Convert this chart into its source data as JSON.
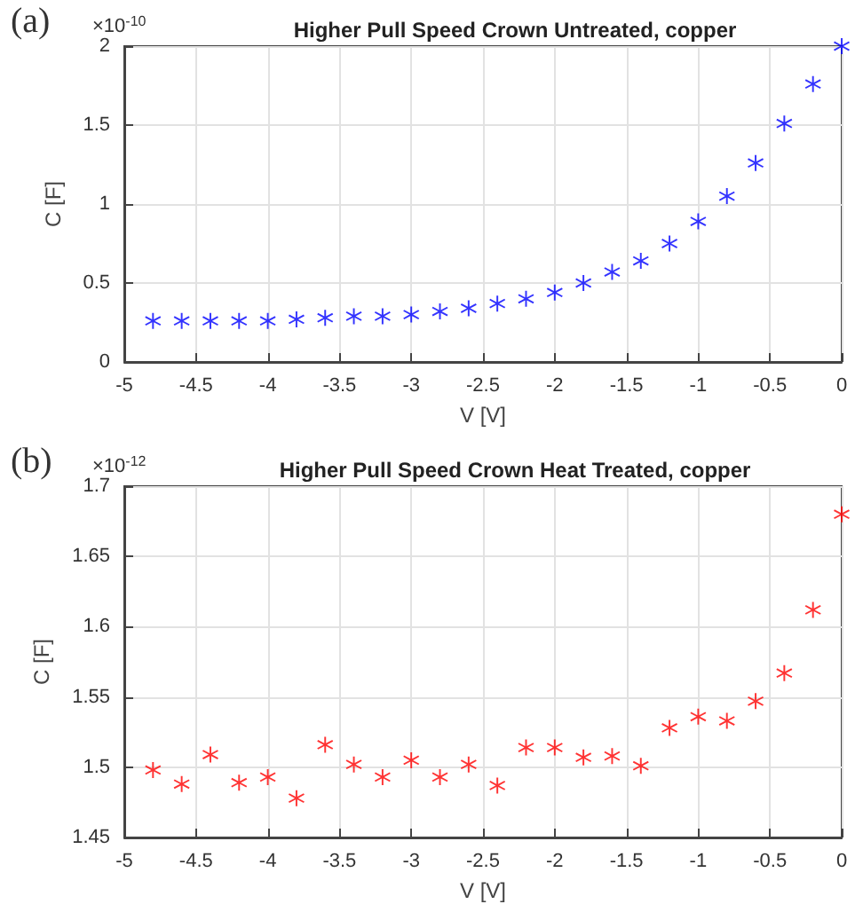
{
  "chart_data": [
    {
      "type": "scatter",
      "title": "Higher Pull Speed Crown Untreated, copper",
      "xlabel": "V [V]",
      "ylabel": "C [F]",
      "annotations": [
        "(a)",
        "×10$^{-10}$"
      ],
      "x": [
        -4.8,
        -4.6,
        -4.4,
        -4.2,
        -4.0,
        -3.8,
        -3.6,
        -3.4,
        -3.2,
        -3.0,
        -2.8,
        -2.6,
        -2.4,
        -2.2,
        -2.0,
        -1.8,
        -1.6,
        -1.4,
        -1.2,
        -1.0,
        -0.8,
        -0.6,
        -0.4,
        -0.2,
        0
      ],
      "series": [
        {
          "color": "#0000ff",
          "values": [
            0.26,
            0.26,
            0.26,
            0.26,
            0.26,
            0.27,
            0.28,
            0.29,
            0.29,
            0.3,
            0.32,
            0.34,
            0.37,
            0.4,
            0.44,
            0.5,
            0.57,
            0.64,
            0.75,
            0.89,
            1.05,
            1.26,
            1.51,
            1.76,
            2.0
          ]
        }
      ],
      "xlim": [
        -5,
        0
      ],
      "xticks": [
        -5,
        -4.5,
        -4,
        -3.5,
        -3,
        -2.5,
        -2,
        -1.5,
        -1,
        -0.5,
        0
      ],
      "ylim": [
        0,
        2
      ],
      "yticks": [
        0,
        0.5,
        1,
        1.5,
        2
      ],
      "grid": true,
      "marker": "star"
    },
    {
      "type": "scatter",
      "title": "Higher Pull Speed Crown Heat Treated, copper",
      "xlabel": "V [V]",
      "ylabel": "C [F]",
      "annotations": [
        "(b)",
        "×10$^{-12}$"
      ],
      "x": [
        -4.8,
        -4.6,
        -4.4,
        -4.2,
        -4.0,
        -3.8,
        -3.6,
        -3.4,
        -3.2,
        -3.0,
        -2.8,
        -2.6,
        -2.4,
        -2.2,
        -2.0,
        -1.8,
        -1.6,
        -1.4,
        -1.2,
        -1.0,
        -0.8,
        -0.6,
        -0.4,
        -0.2,
        0
      ],
      "series": [
        {
          "color": "#ff0000",
          "values": [
            1.498,
            1.488,
            1.509,
            1.489,
            1.493,
            1.478,
            1.516,
            1.502,
            1.493,
            1.505,
            1.493,
            1.502,
            1.487,
            1.514,
            1.514,
            1.507,
            1.508,
            1.501,
            1.528,
            1.536,
            1.533,
            1.547,
            1.567,
            1.612,
            1.68
          ]
        }
      ],
      "xlim": [
        -5,
        0
      ],
      "xticks": [
        -5,
        -4.5,
        -4,
        -3.5,
        -3,
        -2.5,
        -2,
        -1.5,
        -1,
        -0.5,
        0
      ],
      "ylim": [
        1.45,
        1.7
      ],
      "yticks": [
        1.45,
        1.5,
        1.55,
        1.6,
        1.65,
        1.7
      ],
      "grid": true,
      "marker": "star"
    }
  ]
}
